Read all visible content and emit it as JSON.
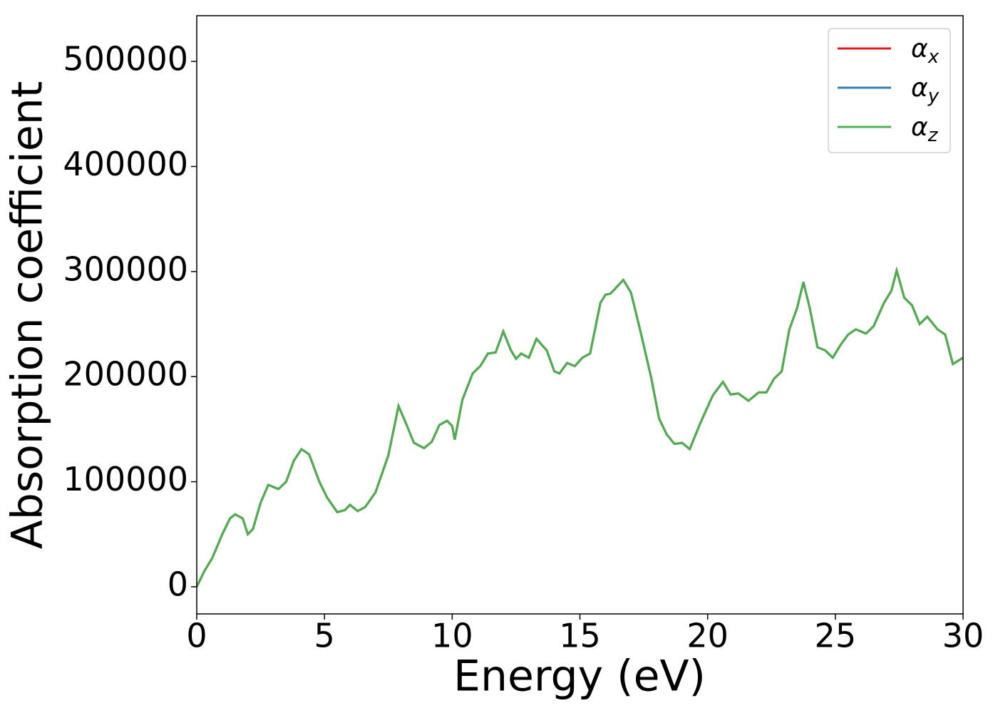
{
  "chart_data": {
    "type": "line",
    "x_label": "Energy (eV)",
    "y_label": "Absorption coefficient",
    "x": [
      0,
      0.3,
      0.6,
      1.0,
      1.3,
      1.5,
      1.8,
      2.0,
      2.2,
      2.5,
      2.8,
      3.2,
      3.5,
      3.8,
      4.1,
      4.4,
      4.8,
      5.1,
      5.5,
      5.8,
      6.0,
      6.3,
      6.6,
      7.0,
      7.5,
      7.9,
      8.2,
      8.5,
      8.9,
      9.2,
      9.5,
      9.8,
      10.0,
      10.1,
      10.4,
      10.8,
      11.1,
      11.4,
      11.7,
      12.0,
      12.3,
      12.5,
      12.7,
      13.0,
      13.3,
      13.7,
      14.0,
      14.2,
      14.5,
      14.8,
      15.1,
      15.4,
      15.8,
      16.0,
      16.2,
      16.7,
      17.0,
      17.4,
      17.8,
      18.1,
      18.4,
      18.7,
      19.0,
      19.3,
      19.7,
      20.2,
      20.6,
      20.9,
      21.2,
      21.6,
      22.0,
      22.3,
      22.6,
      22.9,
      23.2,
      23.5,
      23.75,
      24.0,
      24.3,
      24.6,
      24.9,
      25.2,
      25.5,
      25.8,
      26.2,
      26.5,
      26.9,
      27.2,
      27.4,
      27.7,
      28.0,
      28.3,
      28.6,
      29.0,
      29.3,
      29.6,
      30.0
    ],
    "series": [
      {
        "name": "αx",
        "color": "#e41a1c",
        "values": [
          0,
          15000,
          27000,
          50000,
          65000,
          69000,
          65000,
          50000,
          55000,
          80000,
          97000,
          93000,
          100000,
          120000,
          131000,
          126000,
          100000,
          85000,
          71000,
          73000,
          78000,
          72000,
          76000,
          90000,
          125000,
          172000,
          155000,
          137000,
          132000,
          138000,
          154000,
          158000,
          153000,
          140000,
          178000,
          203000,
          210000,
          222000,
          223000,
          243000,
          225000,
          217000,
          222000,
          218000,
          236000,
          225000,
          205000,
          203000,
          213000,
          210000,
          218000,
          222000,
          270000,
          278000,
          279000,
          292000,
          280000,
          240000,
          198000,
          160000,
          145000,
          136000,
          137000,
          131000,
          155000,
          182000,
          195000,
          183000,
          184000,
          177000,
          185000,
          185000,
          198000,
          205000,
          245000,
          265000,
          290000,
          265000,
          228000,
          225000,
          218000,
          230000,
          240000,
          245000,
          241000,
          248000,
          270000,
          282000,
          301000,
          275000,
          268000,
          250000,
          257000,
          245000,
          240000,
          212000,
          218000
        ]
      },
      {
        "name": "αy",
        "color": "#377eb8",
        "values": [
          0,
          15000,
          27000,
          50000,
          65000,
          69000,
          65000,
          50000,
          55000,
          80000,
          97000,
          93000,
          100000,
          120000,
          131000,
          126000,
          100000,
          85000,
          71000,
          73000,
          78000,
          72000,
          76000,
          90000,
          125000,
          172000,
          155000,
          137000,
          132000,
          138000,
          154000,
          158000,
          153000,
          140000,
          178000,
          203000,
          210000,
          222000,
          223000,
          243000,
          225000,
          217000,
          222000,
          218000,
          236000,
          225000,
          205000,
          203000,
          213000,
          210000,
          218000,
          222000,
          270000,
          278000,
          279000,
          292000,
          280000,
          240000,
          198000,
          160000,
          145000,
          136000,
          137000,
          131000,
          155000,
          182000,
          195000,
          183000,
          184000,
          177000,
          185000,
          185000,
          198000,
          205000,
          245000,
          265000,
          290000,
          265000,
          228000,
          225000,
          218000,
          230000,
          240000,
          245000,
          241000,
          248000,
          270000,
          282000,
          301000,
          275000,
          268000,
          250000,
          257000,
          245000,
          240000,
          212000,
          218000
        ]
      },
      {
        "name": "αz",
        "color": "#4daf4a",
        "values": [
          0,
          15000,
          27000,
          50000,
          65000,
          69000,
          65000,
          50000,
          55000,
          80000,
          97000,
          93000,
          100000,
          120000,
          131000,
          126000,
          100000,
          85000,
          71000,
          73000,
          78000,
          72000,
          76000,
          90000,
          125000,
          172000,
          155000,
          137000,
          132000,
          138000,
          154000,
          158000,
          153000,
          140000,
          178000,
          203000,
          210000,
          222000,
          223000,
          243000,
          225000,
          217000,
          222000,
          218000,
          236000,
          225000,
          205000,
          203000,
          213000,
          210000,
          218000,
          222000,
          270000,
          278000,
          279000,
          292000,
          280000,
          240000,
          198000,
          160000,
          145000,
          136000,
          137000,
          131000,
          155000,
          182000,
          195000,
          183000,
          184000,
          177000,
          185000,
          185000,
          198000,
          205000,
          245000,
          265000,
          290000,
          265000,
          228000,
          225000,
          218000,
          230000,
          240000,
          245000,
          241000,
          248000,
          270000,
          282000,
          301000,
          275000,
          268000,
          250000,
          257000,
          245000,
          240000,
          212000,
          218000
        ]
      }
    ],
    "xlim": [
      0,
      30
    ],
    "xticks": [
      0,
      5,
      10,
      15,
      20,
      25,
      30
    ],
    "ylim": [
      -25800,
      543500
    ],
    "yticks": [
      0,
      100000,
      200000,
      300000,
      400000,
      500000
    ],
    "grid": false,
    "legend": "upper right"
  }
}
